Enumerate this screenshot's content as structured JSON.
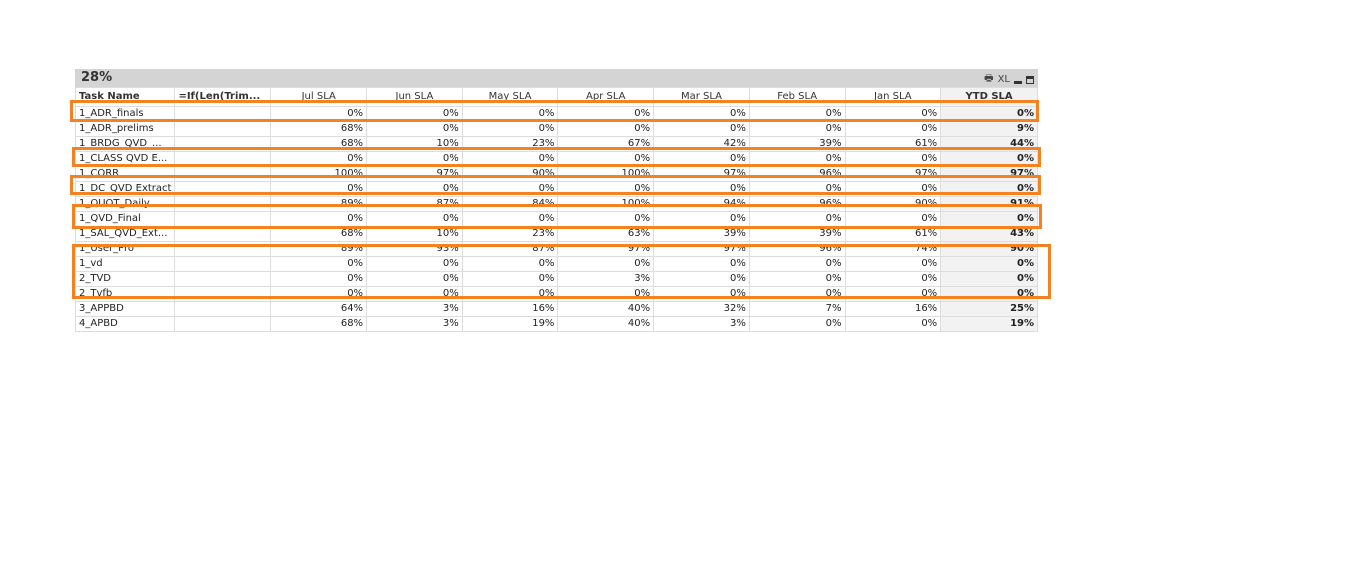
{
  "caption": {
    "title": "28%",
    "xl_label": "XL"
  },
  "columns": [
    "Task Name",
    "=If(Len(Trim...",
    "Jul SLA",
    "Jun SLA",
    "May SLA",
    "Apr SLA",
    "Mar SLA",
    "Feb SLA",
    "Jan SLA",
    "YTD SLA"
  ],
  "rows": [
    [
      "1_ADR_finals",
      "",
      "0%",
      "0%",
      "0%",
      "0%",
      "0%",
      "0%",
      "0%",
      "0%"
    ],
    [
      "1_ADR_prelims",
      "",
      "68%",
      "0%",
      "0%",
      "0%",
      "0%",
      "0%",
      "0%",
      "9%"
    ],
    [
      "1_BRDG_QVD_...",
      "",
      "68%",
      "10%",
      "23%",
      "67%",
      "42%",
      "39%",
      "61%",
      "44%"
    ],
    [
      "1_CLASS QVD E...",
      "",
      "0%",
      "0%",
      "0%",
      "0%",
      "0%",
      "0%",
      "0%",
      "0%"
    ],
    [
      "1_CORR",
      "",
      "100%",
      "97%",
      "90%",
      "100%",
      "97%",
      "96%",
      "97%",
      "97%"
    ],
    [
      "1_DC_QVD Extract",
      "",
      "0%",
      "0%",
      "0%",
      "0%",
      "0%",
      "0%",
      "0%",
      "0%"
    ],
    [
      "1_QUOT_Daily",
      "",
      "89%",
      "87%",
      "84%",
      "100%",
      "94%",
      "96%",
      "90%",
      "91%"
    ],
    [
      "1_QVD_Final",
      "",
      "0%",
      "0%",
      "0%",
      "0%",
      "0%",
      "0%",
      "0%",
      "0%"
    ],
    [
      "1_SAL_QVD_Ext...",
      "",
      "68%",
      "10%",
      "23%",
      "63%",
      "39%",
      "39%",
      "61%",
      "43%"
    ],
    [
      "1_User_Pro",
      "",
      "89%",
      "93%",
      "87%",
      "97%",
      "97%",
      "96%",
      "74%",
      "90%"
    ],
    [
      "1_vd",
      "",
      "0%",
      "0%",
      "0%",
      "0%",
      "0%",
      "0%",
      "0%",
      "0%"
    ],
    [
      "2_TVD",
      "",
      "0%",
      "0%",
      "0%",
      "3%",
      "0%",
      "0%",
      "0%",
      "0%"
    ],
    [
      "2_Tvfb",
      "",
      "0%",
      "0%",
      "0%",
      "0%",
      "0%",
      "0%",
      "0%",
      "0%"
    ],
    [
      "3_APPBD",
      "",
      "64%",
      "3%",
      "16%",
      "40%",
      "32%",
      "7%",
      "16%",
      "25%"
    ],
    [
      "4_APBD",
      "",
      "68%",
      "3%",
      "19%",
      "40%",
      "3%",
      "0%",
      "0%",
      "19%"
    ]
  ],
  "highlight_color": "#f58220"
}
